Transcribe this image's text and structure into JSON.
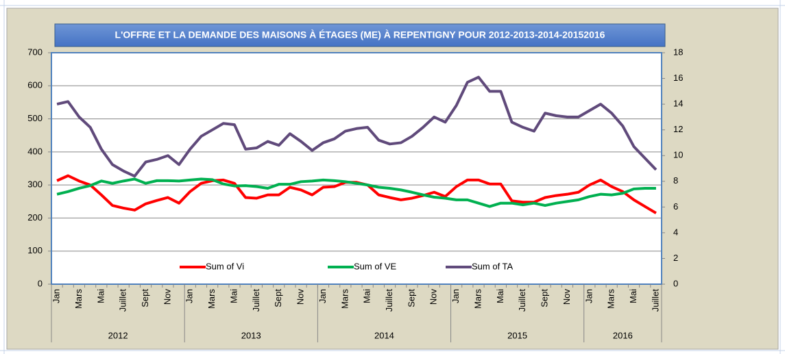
{
  "chart_data": {
    "type": "line",
    "title": "L'OFFRE ET LA DEMANDE DES MAISONS À ÉTAGES (ME) À REPENTIGNY POUR 2012-2013-2014-20152016",
    "categories": [
      "Jan",
      null,
      "Mars",
      null,
      "Mai",
      null,
      "Juillet",
      null,
      "Sept",
      null,
      "Nov",
      null,
      "Jan",
      null,
      "Mars",
      null,
      "Mai",
      null,
      "Juillet",
      null,
      "Sept",
      null,
      "Nov",
      null,
      "Jan",
      null,
      "Mars",
      null,
      "Mai",
      null,
      "Juillet",
      null,
      "Sept",
      null,
      "Nov",
      null,
      "Jan",
      null,
      "Mars",
      null,
      "Mai",
      null,
      "Juillet",
      null,
      "Sept",
      null,
      "Nov",
      null,
      "Jan",
      null,
      "Mars",
      null,
      "Mai",
      null,
      "Juillet"
    ],
    "groups": [
      "2012",
      "2013",
      "2014",
      "2015",
      "2016"
    ],
    "series": [
      {
        "name": "Sum of Vi",
        "color": "#ff0000",
        "values": [
          313,
          328,
          312,
          300,
          270,
          238,
          230,
          224,
          243,
          253,
          262,
          245,
          280,
          305,
          313,
          315,
          305,
          262,
          260,
          270,
          270,
          293,
          285,
          270,
          293,
          295,
          308,
          308,
          300,
          270,
          262,
          255,
          260,
          268,
          278,
          265,
          295,
          315,
          315,
          303,
          303,
          252,
          248,
          248,
          262,
          268,
          272,
          278,
          300,
          315,
          295,
          280,
          255,
          235,
          215
        ]
      },
      {
        "name": "Sum of VE",
        "color": "#00b050",
        "values": [
          272,
          280,
          290,
          298,
          312,
          305,
          312,
          318,
          305,
          313,
          313,
          312,
          315,
          318,
          316,
          303,
          297,
          298,
          295,
          290,
          302,
          302,
          310,
          312,
          315,
          313,
          310,
          305,
          300,
          293,
          290,
          285,
          278,
          270,
          263,
          260,
          255,
          255,
          245,
          235,
          245,
          245,
          240,
          245,
          238,
          245,
          250,
          255,
          265,
          272,
          270,
          275,
          288,
          290,
          290
        ]
      },
      {
        "name": "Sum of TA",
        "color": "#604a7b",
        "axis": "y2",
        "values": [
          14.0,
          14.2,
          13.0,
          12.2,
          10.5,
          9.3,
          8.8,
          8.4,
          9.5,
          9.7,
          10.0,
          9.3,
          10.5,
          11.5,
          12.0,
          12.5,
          12.4,
          10.5,
          10.6,
          11.1,
          10.8,
          11.7,
          11.1,
          10.4,
          11.0,
          11.3,
          11.9,
          12.1,
          12.2,
          11.2,
          10.9,
          11.0,
          11.5,
          12.2,
          13.0,
          12.6,
          13.9,
          15.7,
          16.1,
          15.0,
          15.0,
          12.6,
          12.2,
          11.9,
          13.3,
          13.1,
          13.0,
          13.0,
          13.5,
          14.0,
          13.3,
          12.3,
          10.7,
          9.8,
          8.9
        ]
      }
    ],
    "ylim": [
      0,
      700
    ],
    "yticks": [
      0,
      100,
      200,
      300,
      400,
      500,
      600,
      700
    ],
    "y2lim": [
      0,
      18
    ],
    "y2ticks": [
      0,
      2,
      4,
      6,
      8,
      10,
      12,
      14,
      16,
      18
    ],
    "grid": true,
    "legend": "bottom"
  }
}
